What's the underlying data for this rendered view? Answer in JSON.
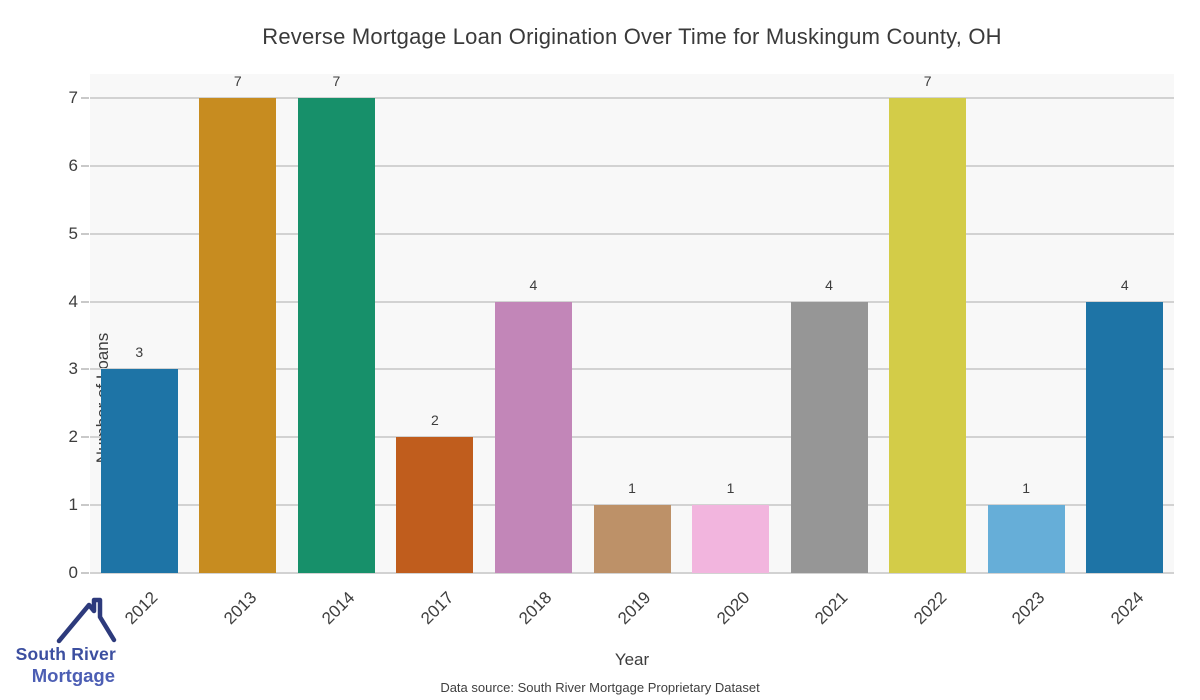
{
  "title": "Reverse Mortgage Loan Origination Over Time for Muskingum County, OH",
  "chart_data": {
    "type": "bar",
    "title": "Reverse Mortgage Loan Origination Over Time for Muskingum County, OH",
    "categories": [
      "2012",
      "2013",
      "2014",
      "2017",
      "2018",
      "2019",
      "2020",
      "2021",
      "2022",
      "2023",
      "2024"
    ],
    "values": [
      3,
      7,
      7,
      2,
      4,
      1,
      1,
      4,
      7,
      1,
      4
    ],
    "bar_labels": [
      "3",
      "7",
      "7",
      "2",
      "4",
      "1",
      "1",
      "4",
      "7",
      "1",
      "4"
    ],
    "bar_colors": [
      "#1e74a6",
      "#c78c20",
      "#17906a",
      "#c05d1d",
      "#c286b8",
      "#bd9168",
      "#f2b5de",
      "#969696",
      "#d3cc48",
      "#66aed8",
      "#1e74a6"
    ],
    "xlabel": "Year",
    "ylabel": "Number of Loans",
    "yticks": [
      0,
      1,
      2,
      3,
      4,
      5,
      6,
      7
    ],
    "ylim": [
      0,
      7.35
    ],
    "grid": true,
    "legend": null
  },
  "footer": {
    "data_source": "Data source: South River Mortgage Proprietary Dataset"
  },
  "logo": {
    "icon": "house-roof-icon",
    "line1": "South River",
    "line2": "Mortgage",
    "roof_color": "#2d3a7c"
  },
  "colors": {
    "panel_bg": "#f8f8f8",
    "gridline": "#d2d2d2",
    "tick": "#c9c9c9",
    "text": "#3d3d3d",
    "title_text": "#3a3a3a"
  }
}
